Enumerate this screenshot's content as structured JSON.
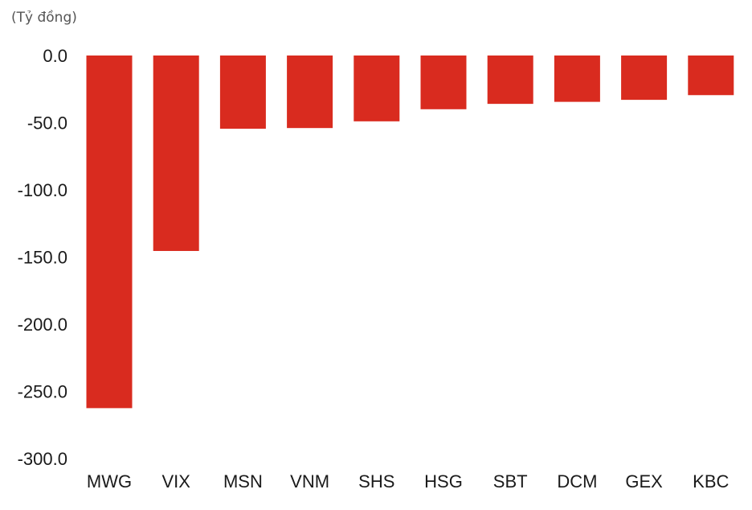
{
  "chart_data": {
    "type": "bar",
    "unit_label": "(Tỷ đồng)",
    "categories": [
      "MWG",
      "VIX",
      "MSN",
      "VNM",
      "SHS",
      "HSG",
      "SBT",
      "DCM",
      "GEX",
      "KBC"
    ],
    "values": [
      -262.5,
      -145.5,
      -54.5,
      -54.0,
      -49.0,
      -40.0,
      -36.0,
      -34.5,
      -33.0,
      -29.5
    ],
    "yticks": [
      "0.0",
      "-50.0",
      "-100.0",
      "-150.0",
      "-200.0",
      "-250.0",
      "-300.0"
    ],
    "ylim": [
      -300,
      0
    ],
    "bar_color": "#d92b1f",
    "grid": false,
    "legend": "none"
  }
}
